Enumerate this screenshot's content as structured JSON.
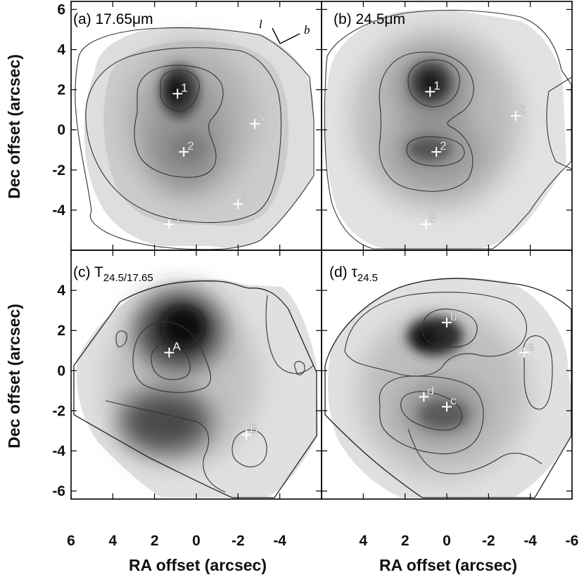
{
  "figure": {
    "y_axis_title": "Dec offset (arcsec)",
    "x_axis_title": "RA offset (arcsec)",
    "compass": {
      "l_label": "l",
      "b_label": "b"
    },
    "colors": {
      "background": "#ffffff",
      "map_fill_light": "#d4d4d4",
      "map_dark": "#111111",
      "contour_line": "#333333",
      "marker": "#ffffff"
    }
  },
  "chart_data": [
    {
      "type": "heatmap",
      "panel_label": "(a) 17.65μm",
      "xlim": [
        6,
        -6
      ],
      "ylim": [
        -6,
        6.4
      ],
      "x_ticks": [
        6,
        4,
        2,
        0,
        -2,
        -4
      ],
      "y_ticks": [
        6,
        4,
        2,
        0,
        -2,
        -4
      ],
      "x_axis_reversed": true,
      "sources": [
        {
          "label": "1",
          "x": 0.9,
          "y": 1.8
        },
        {
          "label": "2",
          "x": 0.6,
          "y": -1.1
        },
        {
          "label": "3",
          "x": 1.3,
          "y": -4.7
        },
        {
          "label": "4",
          "x": -2.0,
          "y": -3.7
        },
        {
          "label": "5",
          "x": -2.8,
          "y": 0.3
        }
      ]
    },
    {
      "type": "heatmap",
      "panel_label": "(b) 24.5μm",
      "xlim": [
        6,
        -6
      ],
      "ylim": [
        -6,
        6.4
      ],
      "x_ticks": [
        4,
        2,
        0,
        -2,
        -4,
        -6
      ],
      "y_ticks": [
        6,
        4,
        2,
        0,
        -2,
        -4
      ],
      "x_axis_reversed": true,
      "sources": [
        {
          "label": "1",
          "x": 0.8,
          "y": 1.9
        },
        {
          "label": "2",
          "x": 0.5,
          "y": -1.1
        },
        {
          "label": "3",
          "x": 1.0,
          "y": -4.7
        },
        {
          "label": "5",
          "x": -3.3,
          "y": 0.7
        }
      ]
    },
    {
      "type": "heatmap",
      "panel_label": "(c) T24.5/17.65",
      "panel_label_parts": {
        "symbol": "T",
        "subscript": "24.5/17.65"
      },
      "xlim": [
        6,
        -6
      ],
      "ylim": [
        -6.4,
        6
      ],
      "x_ticks": [
        6,
        4,
        2,
        0,
        -2,
        -4
      ],
      "y_ticks": [
        4,
        2,
        0,
        -2,
        -4,
        -6
      ],
      "x_axis_reversed": true,
      "sources": [
        {
          "label": "A",
          "x": 1.3,
          "y": 0.9
        },
        {
          "label": "B",
          "x": -2.4,
          "y": -3.2
        }
      ]
    },
    {
      "type": "heatmap",
      "panel_label": "(d) τ24.5",
      "panel_label_parts": {
        "symbol": "τ",
        "subscript": "24.5"
      },
      "xlim": [
        6,
        -6
      ],
      "ylim": [
        -6.4,
        6
      ],
      "x_ticks": [
        4,
        2,
        0,
        -2,
        -4,
        -6
      ],
      "y_ticks": [
        4,
        2,
        0,
        -2,
        -4,
        -6
      ],
      "x_axis_reversed": true,
      "sources": [
        {
          "label": "b",
          "x": 0.0,
          "y": 2.4
        },
        {
          "label": "c",
          "x": 0.0,
          "y": -1.8
        },
        {
          "label": "d",
          "x": 1.1,
          "y": -1.3
        },
        {
          "label": "e",
          "x": -3.7,
          "y": 0.9
        }
      ]
    }
  ]
}
